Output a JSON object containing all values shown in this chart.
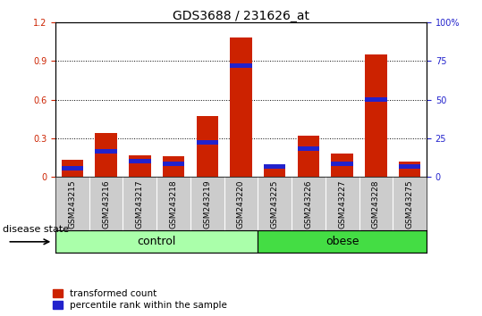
{
  "title": "GDS3688 / 231626_at",
  "samples": [
    "GSM243215",
    "GSM243216",
    "GSM243217",
    "GSM243218",
    "GSM243219",
    "GSM243220",
    "GSM243225",
    "GSM243226",
    "GSM243227",
    "GSM243228",
    "GSM243275"
  ],
  "transformed_count": [
    0.13,
    0.34,
    0.17,
    0.16,
    0.47,
    1.08,
    0.1,
    0.32,
    0.18,
    0.95,
    0.12
  ],
  "percentile_rank_left": [
    0.07,
    0.2,
    0.12,
    0.1,
    0.27,
    0.86,
    0.08,
    0.22,
    0.1,
    0.6,
    0.08
  ],
  "groups": [
    "control",
    "control",
    "control",
    "control",
    "control",
    "control",
    "obese",
    "obese",
    "obese",
    "obese",
    "obese"
  ],
  "n_control": 6,
  "n_obese": 5,
  "control_color": "#AAFFAA",
  "obese_color": "#44DD44",
  "bar_color_red": "#CC2200",
  "bar_color_blue": "#2222CC",
  "bar_width": 0.65,
  "blue_bar_height": 0.035,
  "ylim_left": [
    0,
    1.2
  ],
  "ylim_right": [
    0,
    100
  ],
  "yticks_left": [
    0,
    0.3,
    0.6,
    0.9,
    1.2
  ],
  "yticks_right": [
    0,
    25,
    50,
    75,
    100
  ],
  "ytick_labels_left": [
    "0",
    "0.3",
    "0.6",
    "0.9",
    "1.2"
  ],
  "ytick_labels_right": [
    "0",
    "25",
    "50",
    "75",
    "100%"
  ],
  "legend_labels": [
    "transformed count",
    "percentile rank within the sample"
  ],
  "disease_label": "disease state",
  "tick_label_area_color": "#CCCCCC",
  "control_label": "control",
  "obese_label": "obese",
  "title_fontsize": 10,
  "tick_fontsize": 7,
  "label_fontsize": 8,
  "legend_fontsize": 7.5,
  "sample_fontsize": 6.5
}
